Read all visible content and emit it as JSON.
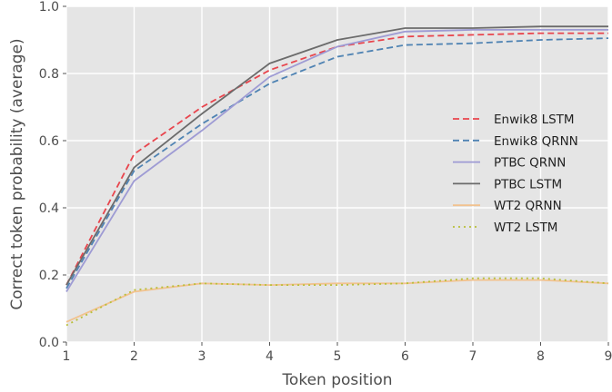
{
  "chart_data": {
    "type": "line",
    "title": "",
    "xlabel": "Token position",
    "ylabel": "Correct token probability (average)",
    "xlim": [
      1,
      9
    ],
    "ylim": [
      0,
      1.0
    ],
    "xticks": [
      "1",
      "2",
      "3",
      "4",
      "5",
      "6",
      "7",
      "8",
      "9"
    ],
    "yticks": [
      "0.0",
      "0.2",
      "0.4",
      "0.6",
      "0.8",
      "1.0"
    ],
    "grid": true,
    "legend_position": "center-right",
    "x": [
      1,
      2,
      3,
      4,
      5,
      6,
      7,
      8,
      9
    ],
    "series": [
      {
        "name": "Enwik8 LSTM",
        "color": "#e8454d",
        "style": "dashed",
        "values": [
          0.17,
          0.56,
          0.7,
          0.81,
          0.88,
          0.91,
          0.915,
          0.92,
          0.92
        ]
      },
      {
        "name": "Enwik8 QRNN",
        "color": "#4f83b3",
        "style": "dashed",
        "values": [
          0.16,
          0.51,
          0.65,
          0.77,
          0.85,
          0.885,
          0.89,
          0.9,
          0.905
        ]
      },
      {
        "name": "PTBC QRNN",
        "color": "#9e9bd4",
        "style": "solid",
        "values": [
          0.15,
          0.48,
          0.63,
          0.79,
          0.88,
          0.925,
          0.93,
          0.93,
          0.93
        ]
      },
      {
        "name": "PTBC LSTM",
        "color": "#6b6b6b",
        "style": "solid",
        "values": [
          0.17,
          0.52,
          0.68,
          0.83,
          0.9,
          0.935,
          0.935,
          0.94,
          0.94
        ]
      },
      {
        "name": "WT2 QRNN",
        "color": "#f2c28f",
        "style": "solid",
        "values": [
          0.06,
          0.15,
          0.175,
          0.17,
          0.175,
          0.175,
          0.185,
          0.185,
          0.175
        ]
      },
      {
        "name": "WT2 LSTM",
        "color": "#b8bf3a",
        "style": "dotted",
        "values": [
          0.05,
          0.155,
          0.175,
          0.17,
          0.17,
          0.175,
          0.19,
          0.19,
          0.175
        ]
      }
    ]
  }
}
